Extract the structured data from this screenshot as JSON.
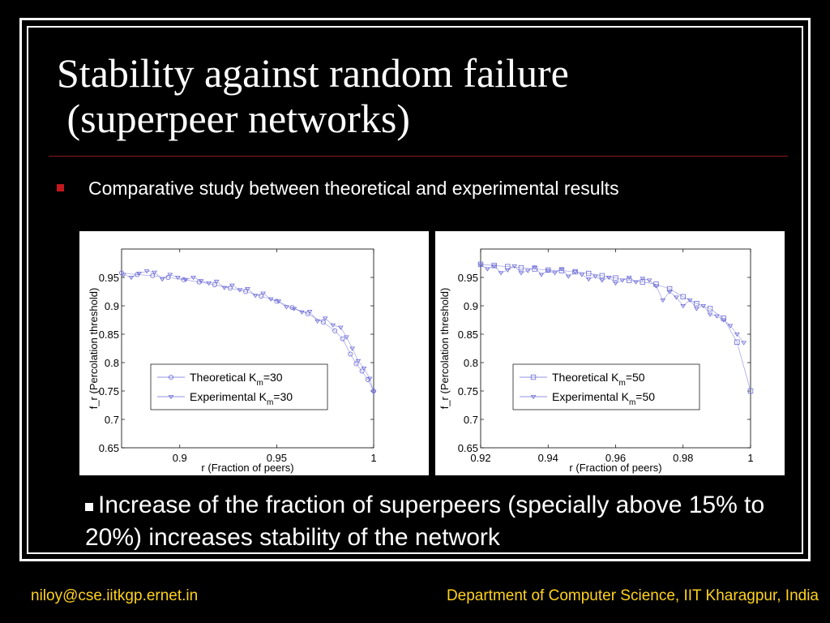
{
  "slide": {
    "title_line1": "Stability against random failure",
    "title_line2": " (superpeer networks)",
    "bullet1": "Comparative study between theoretical and experimental results",
    "bullet2": "Increase of the fraction of superpeers (specially above 15% to 20%) increases stability of the network",
    "footer_left": "niloy@cse.iitkgp.ernet.in",
    "footer_right": "Department of Computer Science, IIT Kharagpur, India",
    "colors": {
      "accent_rule": "#8b1a1a",
      "bullet": "#c0181c",
      "footer": "#ffd21e",
      "series": "#6b6bd6"
    }
  },
  "chart_data": [
    {
      "type": "line",
      "xlabel": "r (Fraction of peers)",
      "ylabel": "f_r (Percolation threshold)",
      "xlim": [
        0.87,
        1.0
      ],
      "ylim": [
        0.65,
        1.0
      ],
      "xticks": [
        "0.9",
        "0.95",
        "1"
      ],
      "yticks": [
        "0.65",
        "0.7",
        "0.75",
        "0.8",
        "0.85",
        "0.9",
        "0.95"
      ],
      "legend_position": "lower-center",
      "series": [
        {
          "name": "Theoretical K_m=30",
          "legend_main": "Theoretical K",
          "legend_sub": "m",
          "legend_tail": "=30",
          "marker": "circle",
          "x": [
            0.87,
            0.878,
            0.886,
            0.894,
            0.902,
            0.91,
            0.918,
            0.926,
            0.934,
            0.942,
            0.95,
            0.958,
            0.966,
            0.974,
            0.98,
            0.984,
            0.988,
            0.991,
            0.994,
            0.997,
            1.0
          ],
          "y": [
            0.958,
            0.955,
            0.953,
            0.95,
            0.946,
            0.942,
            0.937,
            0.931,
            0.925,
            0.917,
            0.908,
            0.897,
            0.886,
            0.871,
            0.856,
            0.842,
            0.815,
            0.798,
            0.785,
            0.77,
            0.75
          ]
        },
        {
          "name": "Experimental K_m=30",
          "legend_main": "Experimental K",
          "legend_sub": "m",
          "legend_tail": "=30",
          "marker": "triangle",
          "x": [
            0.871,
            0.875,
            0.879,
            0.883,
            0.887,
            0.891,
            0.895,
            0.899,
            0.903,
            0.907,
            0.911,
            0.915,
            0.919,
            0.923,
            0.927,
            0.931,
            0.935,
            0.939,
            0.943,
            0.947,
            0.951,
            0.955,
            0.959,
            0.963,
            0.967,
            0.971,
            0.975,
            0.979,
            0.983,
            0.986,
            0.989,
            0.992,
            0.995,
            0.998,
            1.0
          ],
          "y": [
            0.955,
            0.95,
            0.957,
            0.961,
            0.959,
            0.947,
            0.955,
            0.95,
            0.946,
            0.95,
            0.944,
            0.94,
            0.943,
            0.932,
            0.936,
            0.928,
            0.93,
            0.918,
            0.922,
            0.912,
            0.908,
            0.898,
            0.895,
            0.889,
            0.89,
            0.873,
            0.878,
            0.866,
            0.862,
            0.845,
            0.825,
            0.803,
            0.79,
            0.772,
            0.748
          ]
        }
      ]
    },
    {
      "type": "line",
      "xlabel": "r (Fraction of peers)",
      "ylabel": "f_r (Percolation threshold)",
      "xlim": [
        0.92,
        1.0
      ],
      "ylim": [
        0.65,
        1.0
      ],
      "xticks": [
        "0.92",
        "0.94",
        "0.96",
        "0.98",
        "1"
      ],
      "yticks": [
        "0.65",
        "0.7",
        "0.75",
        "0.8",
        "0.85",
        "0.9",
        "0.95"
      ],
      "legend_position": "lower-right",
      "series": [
        {
          "name": "Theoretical K_m=50",
          "legend_main": "Theoretical K",
          "legend_sub": "m",
          "legend_tail": "=50",
          "marker": "square",
          "x": [
            0.92,
            0.924,
            0.928,
            0.932,
            0.936,
            0.94,
            0.944,
            0.948,
            0.952,
            0.956,
            0.96,
            0.964,
            0.968,
            0.972,
            0.976,
            0.98,
            0.984,
            0.988,
            0.992,
            0.996,
            1.0
          ],
          "y": [
            0.973,
            0.971,
            0.969,
            0.967,
            0.965,
            0.963,
            0.962,
            0.96,
            0.957,
            0.953,
            0.949,
            0.945,
            0.942,
            0.938,
            0.93,
            0.916,
            0.904,
            0.895,
            0.878,
            0.836,
            0.75
          ]
        },
        {
          "name": "Experimental K_m=50",
          "legend_main": "Experimental K",
          "legend_sub": "m",
          "legend_tail": "=50",
          "marker": "triangle",
          "x": [
            0.92,
            0.922,
            0.924,
            0.926,
            0.928,
            0.93,
            0.932,
            0.934,
            0.936,
            0.938,
            0.94,
            0.942,
            0.944,
            0.946,
            0.948,
            0.95,
            0.952,
            0.954,
            0.956,
            0.958,
            0.96,
            0.962,
            0.964,
            0.966,
            0.968,
            0.97,
            0.972,
            0.974,
            0.976,
            0.978,
            0.98,
            0.982,
            0.984,
            0.986,
            0.988,
            0.99,
            0.992,
            0.994,
            0.996,
            0.998
          ],
          "y": [
            0.972,
            0.965,
            0.97,
            0.958,
            0.963,
            0.97,
            0.958,
            0.962,
            0.968,
            0.955,
            0.962,
            0.958,
            0.965,
            0.952,
            0.96,
            0.955,
            0.947,
            0.952,
            0.945,
            0.95,
            0.94,
            0.945,
            0.95,
            0.942,
            0.948,
            0.945,
            0.935,
            0.91,
            0.925,
            0.915,
            0.9,
            0.91,
            0.895,
            0.9,
            0.885,
            0.882,
            0.875,
            0.865,
            0.85,
            0.835
          ]
        }
      ]
    }
  ]
}
